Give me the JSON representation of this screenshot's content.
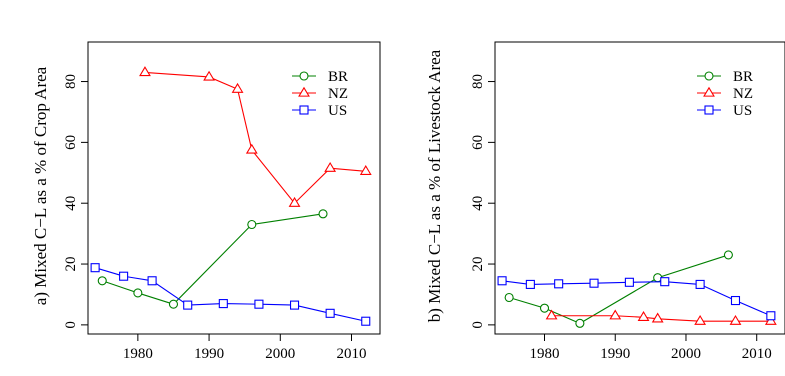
{
  "chart_data": [
    {
      "type": "line",
      "title": "",
      "xlabel": "",
      "ylabel": "a) Mixed C−L as a % of Crop Area",
      "xlim": [
        1973,
        2014
      ],
      "ylim": [
        -3,
        93
      ],
      "x_ticks": [
        1980,
        1990,
        2000,
        2010
      ],
      "y_ticks": [
        0,
        20,
        40,
        60,
        80
      ],
      "legend_position": "top-right",
      "series": [
        {
          "name": "BR",
          "color": "#008000",
          "marker": "circle",
          "x": [
            1975,
            1980,
            1985,
            1996,
            2006
          ],
          "y": [
            14.5,
            10.5,
            6.8,
            33,
            36.5
          ]
        },
        {
          "name": "NZ",
          "color": "#ff0000",
          "marker": "triangle",
          "x": [
            1981,
            1990,
            1994,
            1996,
            2002,
            2007,
            2012
          ],
          "y": [
            83,
            81.5,
            77.5,
            57.5,
            40,
            51.5,
            50.5
          ]
        },
        {
          "name": "US",
          "color": "#0000ff",
          "marker": "square",
          "x": [
            1974,
            1978,
            1982,
            1987,
            1992,
            1997,
            2002,
            2007,
            2012
          ],
          "y": [
            18.8,
            16,
            14.5,
            6.5,
            7,
            6.8,
            6.5,
            3.8,
            1.2
          ]
        }
      ]
    },
    {
      "type": "line",
      "title": "",
      "xlabel": "",
      "ylabel": "b) Mixed C−L as a % of Livestock Area",
      "xlim": [
        1973,
        2014
      ],
      "ylim": [
        -3,
        93
      ],
      "x_ticks": [
        1980,
        1990,
        2000,
        2010
      ],
      "y_ticks": [
        0,
        20,
        40,
        60,
        80
      ],
      "legend_position": "top-right",
      "series": [
        {
          "name": "BR",
          "color": "#008000",
          "marker": "circle",
          "x": [
            1975,
            1980,
            1985,
            1996,
            2006
          ],
          "y": [
            9,
            5.5,
            0.5,
            15.5,
            23
          ]
        },
        {
          "name": "NZ",
          "color": "#ff0000",
          "marker": "triangle",
          "x": [
            1981,
            1990,
            1994,
            1996,
            2002,
            2007,
            2012
          ],
          "y": [
            3,
            3,
            2.5,
            2,
            1.2,
            1.2,
            1.2
          ]
        },
        {
          "name": "US",
          "color": "#0000ff",
          "marker": "square",
          "x": [
            1974,
            1978,
            1982,
            1987,
            1992,
            1997,
            2002,
            2007,
            2012
          ],
          "y": [
            14.5,
            13.3,
            13.5,
            13.7,
            14,
            14.2,
            13.3,
            8,
            3
          ]
        }
      ]
    }
  ]
}
